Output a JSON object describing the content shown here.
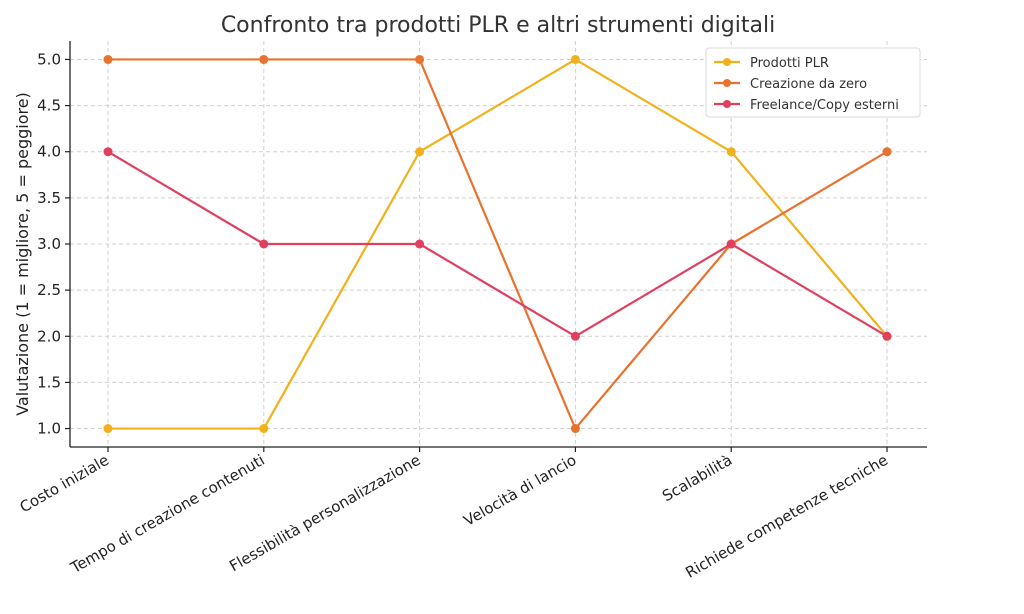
{
  "chart_data": {
    "type": "line",
    "title": "Confronto tra prodotti PLR e altri strumenti digitali",
    "xlabel": "",
    "ylabel": "Valutazione (1 = migliore, 5 = peggiore)",
    "categories": [
      "Costo iniziale",
      "Tempo di creazione contenuti",
      "Flessibilità personalizzazione",
      "Velocità di lancio",
      "Scalabilità",
      "Richiede competenze tecniche"
    ],
    "ylim": [
      0.8,
      5.2
    ],
    "yticks": [
      "1.0",
      "1.5",
      "2.0",
      "2.5",
      "3.0",
      "3.5",
      "4.0",
      "4.5",
      "5.0"
    ],
    "grid": true,
    "legend_position": "top-right",
    "series": [
      {
        "name": "Prodotti PLR",
        "color": "#f2b11a",
        "values": [
          1,
          1,
          4,
          5,
          4,
          2
        ]
      },
      {
        "name": "Creazione da zero",
        "color": "#e8722e",
        "values": [
          5,
          5,
          5,
          1,
          3,
          4
        ]
      },
      {
        "name": "Freelance/Copy esterni",
        "color": "#e0405e",
        "values": [
          4,
          3,
          3,
          2,
          3,
          2
        ]
      }
    ]
  }
}
